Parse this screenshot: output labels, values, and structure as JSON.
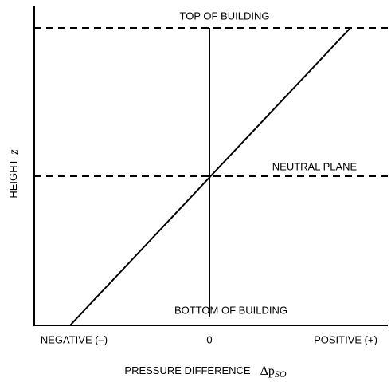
{
  "labels": {
    "top": "TOP OF BUILDING",
    "neutral": "NEUTRAL PLANE",
    "bottom": "BOTTOM OF BUILDING"
  },
  "x_axis": {
    "title": "PRESSURE DIFFERENCE",
    "symbol": "Δp",
    "subscript": "SO",
    "ticks": [
      "NEGATIVE (–)",
      "0",
      "POSITIVE (+)"
    ]
  },
  "y_axis": {
    "title": "HEIGHT",
    "symbol": "z"
  }
}
